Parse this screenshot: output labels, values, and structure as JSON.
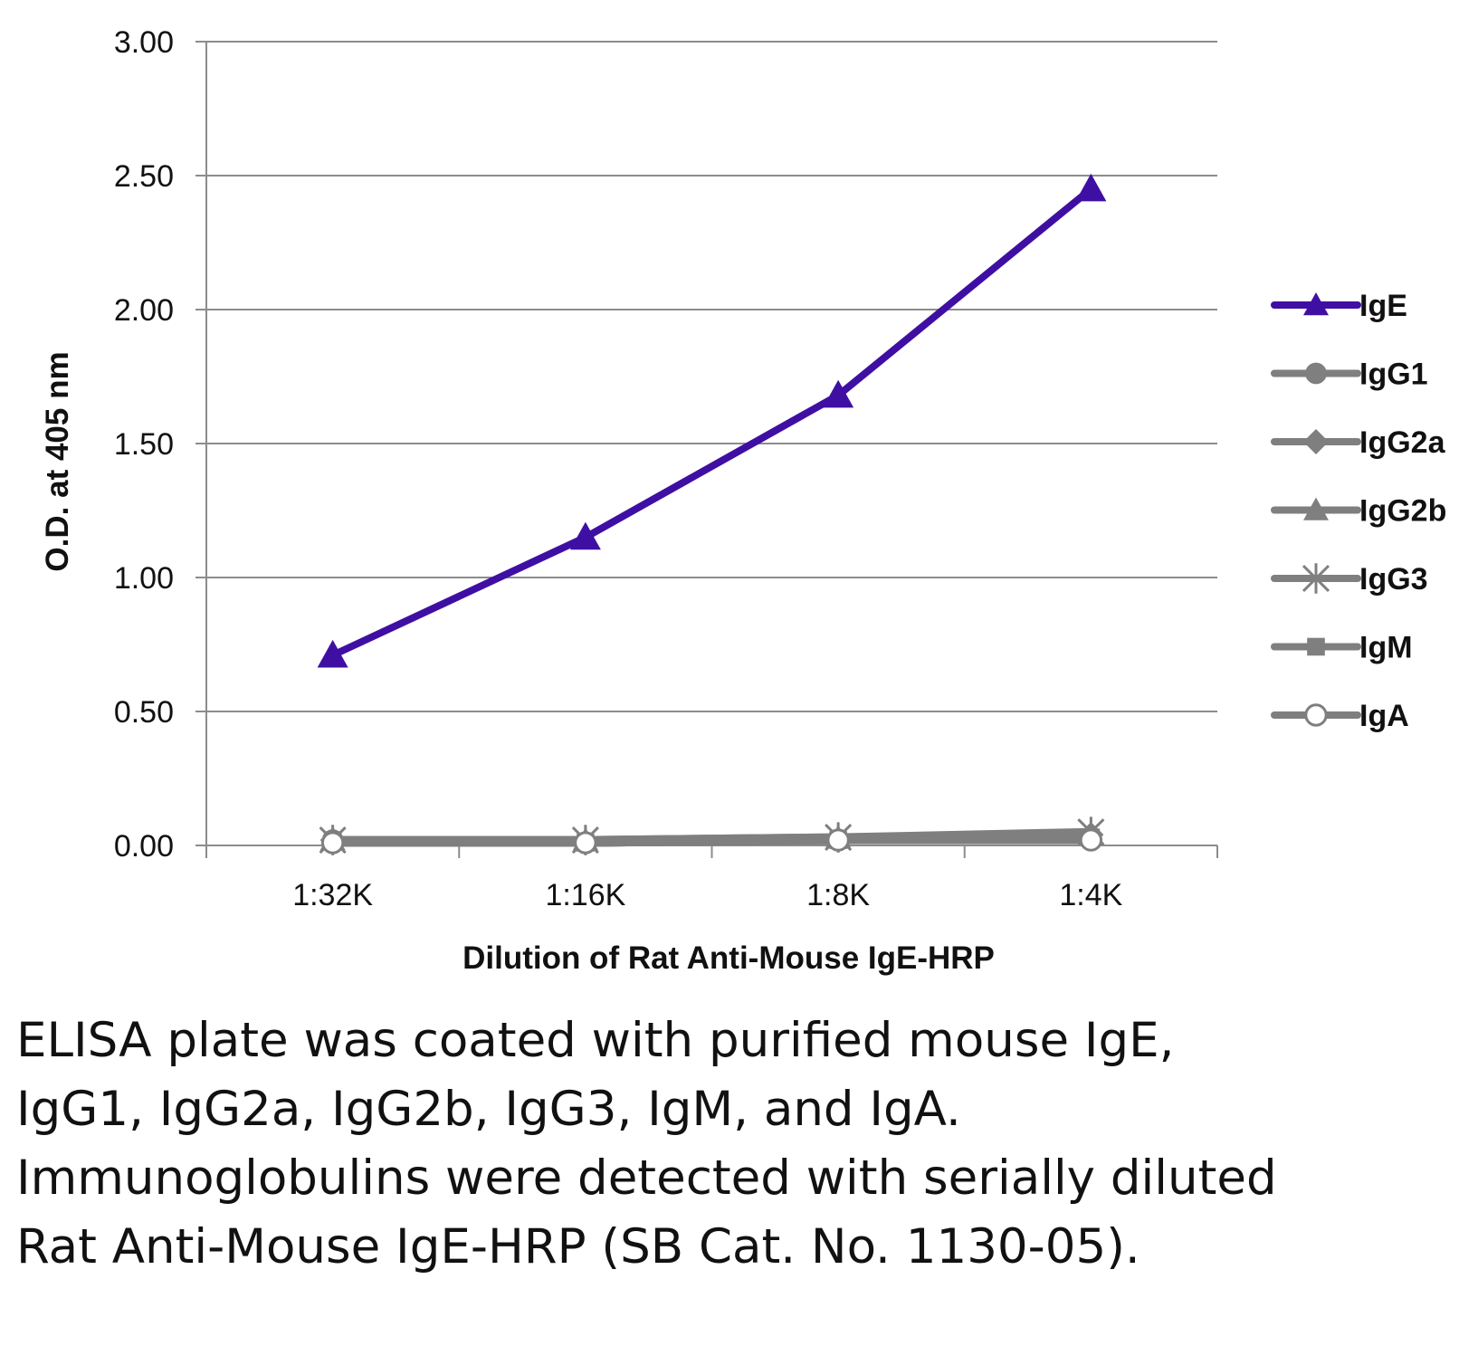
{
  "chart_data": {
    "type": "line",
    "categories": [
      "1:32K",
      "1:16K",
      "1:8K",
      "1:4K"
    ],
    "ylim": [
      0,
      3
    ],
    "yticks": [
      "0.00",
      "0.50",
      "1.00",
      "1.50",
      "2.00",
      "2.50",
      "3.00"
    ],
    "ytick_values": [
      0,
      0.5,
      1,
      1.5,
      2,
      2.5,
      3
    ],
    "xlabel": "Dilution of Rat Anti-Mouse IgE-HRP",
    "ylabel": "O.D. at 405 nm",
    "grid": true,
    "legend_position": "right",
    "series": [
      {
        "name": "IgE",
        "marker": "triangle",
        "color": "#3f0fa3",
        "values": [
          0.71,
          1.15,
          1.68,
          2.45
        ]
      },
      {
        "name": "IgG1",
        "marker": "circle",
        "color": "#7f7f7f",
        "values": [
          0.02,
          0.01,
          0.02,
          0.03
        ]
      },
      {
        "name": "IgG2a",
        "marker": "diamond",
        "color": "#7f7f7f",
        "values": [
          0.02,
          0.01,
          0.02,
          0.04
        ]
      },
      {
        "name": "IgG2b",
        "marker": "triangle",
        "color": "#7f7f7f",
        "values": [
          0.02,
          0.02,
          0.03,
          0.04
        ]
      },
      {
        "name": "IgG3",
        "marker": "star",
        "color": "#7f7f7f",
        "values": [
          0.02,
          0.02,
          0.03,
          0.05
        ]
      },
      {
        "name": "IgM",
        "marker": "square",
        "color": "#7f7f7f",
        "values": [
          0.02,
          0.01,
          0.02,
          0.03
        ]
      },
      {
        "name": "IgA",
        "marker": "open-circle",
        "color": "#7f7f7f",
        "values": [
          0.01,
          0.01,
          0.02,
          0.02
        ]
      }
    ]
  },
  "caption": "ELISA plate was coated with purified mouse IgE, IgG1, IgG2a, IgG2b, IgG3, IgM, and IgA. Immunoglobulins were detected with serially diluted Rat Anti-Mouse IgE-HRP (SB Cat. No. 1130-05)."
}
